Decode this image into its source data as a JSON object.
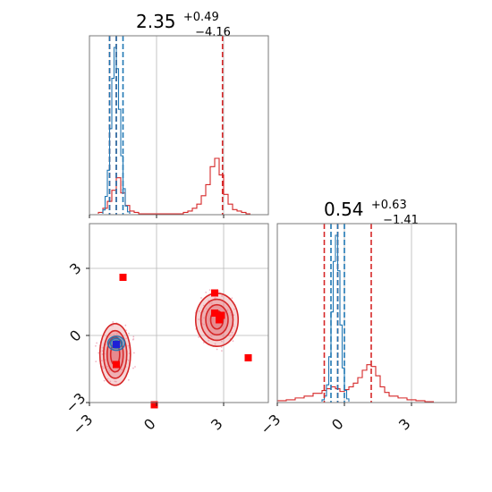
{
  "chart_data": {
    "type": "corner",
    "params": 2,
    "ticks": [
      "−3",
      "0",
      "3"
    ],
    "tick_values": [
      -3,
      0,
      3
    ],
    "range": [
      -3.0,
      5.0
    ],
    "grid": true,
    "colors": {
      "red": "#d62728",
      "blue": "#1f77b4",
      "red_fill": "#e6868a",
      "pink_scatter": "#f2b6c6",
      "marker_blue": "#1f1fd6"
    },
    "titles": [
      {
        "value": "2.35",
        "plus": "+0.49",
        "minus": "−4.16"
      },
      {
        "value": "0.54",
        "plus": "+0.63",
        "minus": "−1.41"
      }
    ],
    "param1_red_quantiles": [
      -2.1,
      -1.8,
      2.95
    ],
    "param1_blue_quantiles": [
      -2.1,
      -1.8,
      -1.5
    ],
    "param2_red_quantiles": [
      -0.9,
      -0.3,
      1.2
    ],
    "param2_blue_quantiles": [
      -0.6,
      -0.3,
      0.0
    ],
    "param1_red_hist": {
      "edges": [
        -2.6,
        -2.4,
        -2.2,
        -2.0,
        -1.8,
        -1.6,
        -1.4,
        -1.2,
        -1.0,
        -0.8,
        1.0,
        1.2,
        1.4,
        1.6,
        1.8,
        2.0,
        2.2,
        2.4,
        2.6,
        2.8,
        3.0,
        3.2,
        3.4,
        3.6,
        3.8,
        4.0,
        4.2
      ],
      "counts": [
        1,
        4,
        9,
        17,
        26,
        15,
        6,
        2,
        1,
        0,
        0,
        1,
        2,
        4,
        7,
        13,
        21,
        34,
        40,
        28,
        14,
        7,
        3,
        2,
        1,
        0
      ]
    },
    "param1_blue_hist": {
      "edges": [
        -2.4,
        -2.3,
        -2.2,
        -2.1,
        -2.0,
        -1.9,
        -1.8,
        -1.7,
        -1.6,
        -1.5,
        -1.4,
        -1.3,
        -1.2
      ],
      "counts": [
        4,
        18,
        45,
        88,
        140,
        172,
        150,
        108,
        60,
        26,
        8,
        2
      ]
    },
    "param2_red_hist": {
      "edges": [
        -3.0,
        -2.6,
        -2.2,
        -1.8,
        -1.4,
        -1.0,
        -0.8,
        -0.6,
        -0.4,
        -0.2,
        0.0,
        0.2,
        0.4,
        0.6,
        0.8,
        1.0,
        1.2,
        1.4,
        1.6,
        1.8,
        2.0,
        2.4,
        2.8,
        3.2,
        3.6,
        4.0
      ],
      "counts": [
        1,
        2,
        4,
        6,
        9,
        12,
        14,
        16,
        14,
        11,
        13,
        16,
        20,
        26,
        34,
        40,
        38,
        28,
        16,
        10,
        6,
        4,
        2,
        1,
        0
      ]
    },
    "param2_blue_hist": {
      "edges": [
        -1.0,
        -0.9,
        -0.8,
        -0.7,
        -0.6,
        -0.5,
        -0.4,
        -0.3,
        -0.2,
        -0.1,
        0.0,
        0.1,
        0.2
      ],
      "counts": [
        2,
        6,
        18,
        48,
        96,
        150,
        178,
        140,
        82,
        36,
        12,
        3
      ]
    },
    "scatter_red_markers": [
      {
        "x": -1.5,
        "y": 2.6
      },
      {
        "x": 2.6,
        "y": 1.9
      },
      {
        "x": 2.6,
        "y": 1.0
      },
      {
        "x": 2.9,
        "y": 0.9
      },
      {
        "x": 2.8,
        "y": 0.7
      },
      {
        "x": 4.1,
        "y": -1.0
      },
      {
        "x": -1.8,
        "y": -1.3
      },
      {
        "x": -0.1,
        "y": -3.1
      }
    ],
    "scatter_blue_markers": [
      {
        "x": -1.8,
        "y": -0.4
      }
    ],
    "contour_red_centers": [
      {
        "x": -1.85,
        "y": -0.85
      },
      {
        "x": 2.7,
        "y": 0.7
      }
    ],
    "contour_blue_center": {
      "x": -1.8,
      "y": -0.35
    }
  }
}
